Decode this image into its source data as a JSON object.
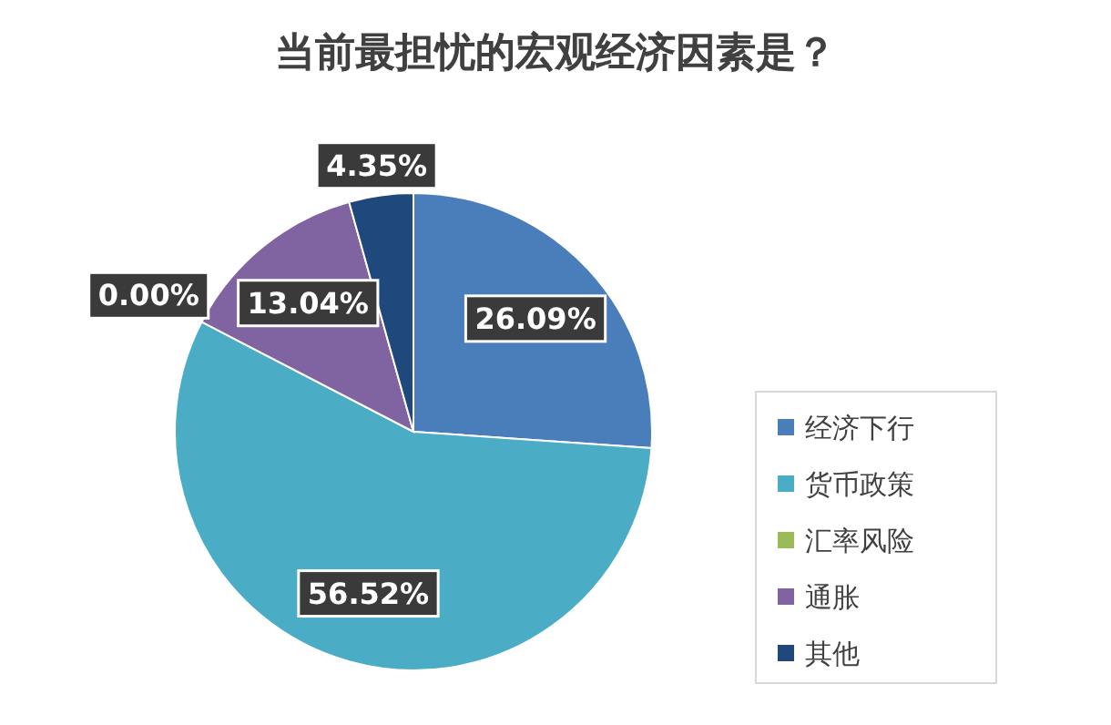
{
  "chart_data": {
    "type": "pie",
    "title": "当前最担忧的宏观经济因素是？",
    "categories": [
      "经济下行",
      "货币政策",
      "汇率风险",
      "通胀",
      "其他"
    ],
    "values": [
      26.09,
      56.52,
      0.0,
      13.04,
      4.35
    ],
    "colors": [
      "#4a7ebb",
      "#4bacc6",
      "#9bbb59",
      "#8064a2",
      "#1f497d"
    ],
    "value_labels": [
      "26.09%",
      "56.52%",
      "0.00%",
      "13.04%",
      "4.35%"
    ],
    "legend": "right"
  }
}
